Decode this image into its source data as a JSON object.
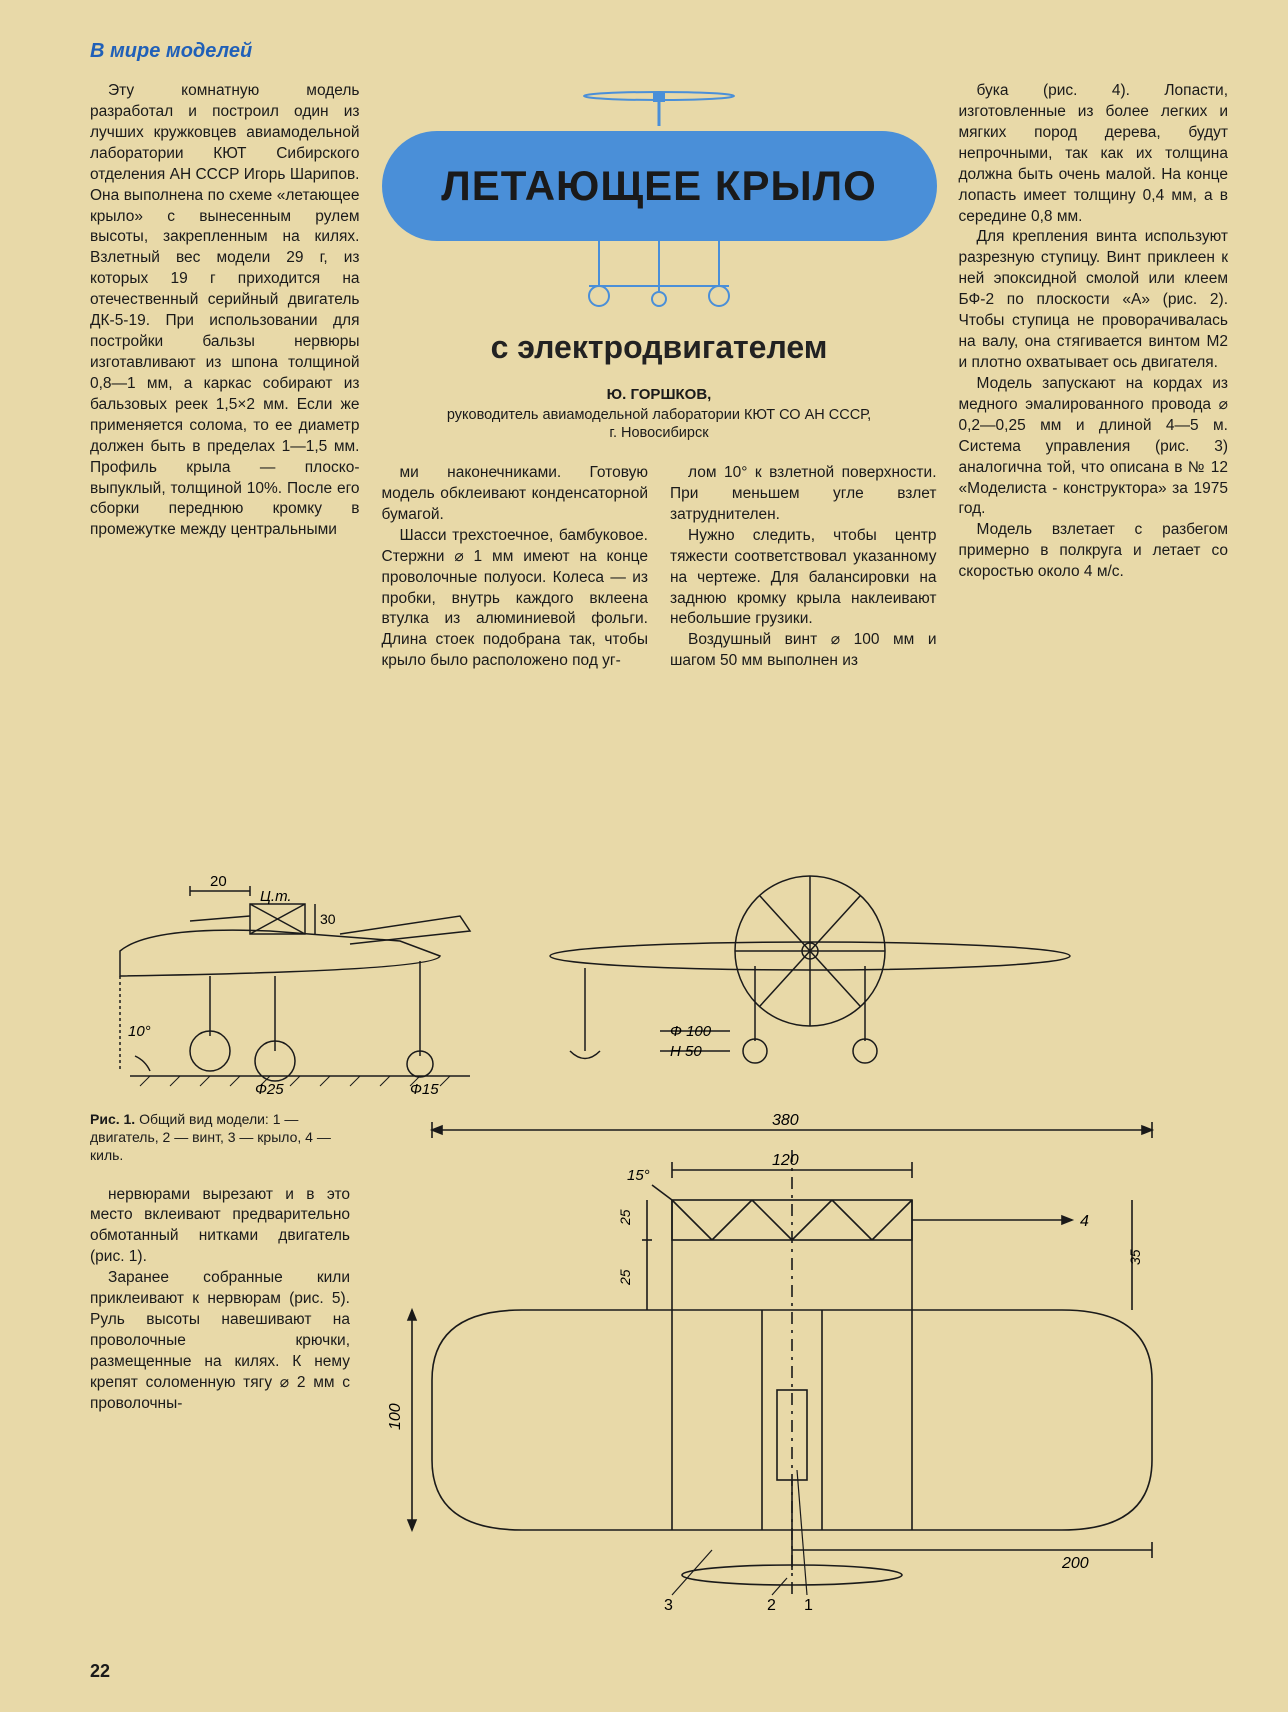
{
  "rubric": "В мире моделей",
  "banner": {
    "title": "ЛЕТАЮЩЕЕ КРЫЛО",
    "subtitle": "с электродвигателем",
    "author": "Ю. ГОРШКОВ,",
    "affiliation": "руководитель авиамодельной лаборатории КЮТ СО АН СССР,",
    "city": "г. Новосибирск",
    "wing_color": "#4a8fd8",
    "title_fontsize": 42,
    "subtitle_fontsize": 32
  },
  "col1_top": "Эту комнатную модель разработал и построил один из лучших кружковцев авиамодельной лаборатории КЮТ Сибирского отделения АН СССР Игорь Шарипов. Она выполнена по схеме «летающее крыло» с вынесенным рулем высоты, закрепленным на килях. Взлетный вес модели 29 г, из которых 19 г приходится на отечественный серийный двигатель ДК-5-19. При использовании для постройки бальзы нервюры изготавливают из шпона толщиной 0,8—1 мм, а каркас собирают из бальзовых реек 1,5×2 мм. Если же применяется солома, то ее диаметр должен быть в пределах 1—1,5 мм. Профиль крыла — плоско-выпуклый, толщиной 10%. После его сборки переднюю кромку в промежутке между центральными",
  "col2": "ми наконечниками. Готовую модель обклеивают конденсаторной бумагой.\nШасси трехстоечное, бамбуковое. Стержни ⌀ 1 мм имеют на конце проволочные полуоси. Колеса — из пробки, внутрь каждого вклеена втулка из алюминиевой фольги. Длина стоек подобрана так, чтобы крыло было расположено под уг-",
  "col3": "лом 10° к взлетной поверхности. При меньшем угле взлет затруднителен.\nНужно следить, чтобы центр тяжести соответствовал указанному на чертеже. Для балансировки на заднюю кромку крыла наклеивают небольшие грузики.\nВоздушный винт ⌀ 100 мм и шагом 50 мм выполнен из",
  "col4": "бука (рис. 4). Лопасти, изготовленные из более легких и мягких пород дерева, будут непрочными, так как их толщина должна быть очень малой. На конце лопасть имеет толщину 0,4 мм, а в середине 0,8 мм.\nДля крепления винта используют разрезную ступицу. Винт приклеен к ней эпоксидной смолой или клеем БФ-2 по плоскости «А» (рис. 2). Чтобы ступица не проворачивалась на валу, она стягивается винтом М2 и плотно охватывает ось двигателя.\nМодель запускают на кордах из медного эмалированного провода ⌀ 0,2—0,25 мм и длиной 4—5 м. Система управления (рис. 3) аналогична той, что описана в № 12 «Моделиста - конструктора» за 1975 год.\nМодель взлетает с разбегом примерно в полкруга и летает со скоростью около 4 м/с.",
  "caption": "Рис. 1. Общий вид модели: 1 — двигатель, 2 — винт, 3 — крыло, 4 — киль.",
  "bottom_text": "нервюрами вырезают и в это место вклеивают предварительно обмотанный нитками двигатель (рис. 1).\nЗаранее собранные кили приклеивают к нервюрам (рис. 5). Руль высоты навешивают на проволочные крючки, размещенные на килях. К нему крепят соломенную тягу ⌀ 2 мм с проволочны-",
  "page_number": "22",
  "diagram_side": {
    "type": "technical-drawing",
    "stroke_color": "#1a1a1a",
    "labels": {
      "dim_20": "20",
      "cg": "Ц.т.",
      "dim_30": "30",
      "angle_10": "10°",
      "wheel_25": "Ф25",
      "wheel_15": "Ф15",
      "prop_100": "Ф 100",
      "pitch_50": "H 50"
    }
  },
  "diagram_plan": {
    "type": "technical-drawing",
    "stroke_color": "#1a1a1a",
    "labels": {
      "span_380": "380",
      "dim_120": "120",
      "angle_15": "15°",
      "dim_25a": "25",
      "dim_25b": "25",
      "dim_35": "35",
      "chord_100": "100",
      "half_200": "200",
      "num_1": "1",
      "num_2": "2",
      "num_3": "3",
      "num_4": "4"
    }
  },
  "colors": {
    "page_bg": "#e8d9a8",
    "text": "#1a1a1a",
    "rubric": "#2060b8",
    "banner_blue": "#4a8fd8"
  }
}
